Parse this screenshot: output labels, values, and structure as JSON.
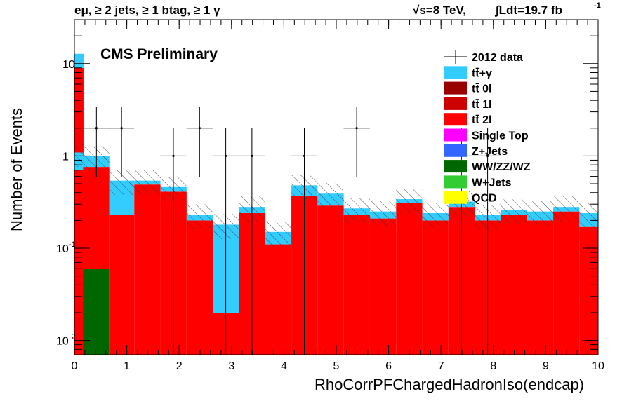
{
  "chart_data": {
    "type": "bar",
    "stacked": true,
    "yscale": "log",
    "title_left": "eμ, ≥ 2 jets, ≥ 1 btag, ≥ 1 γ",
    "title_right_energy": "√s=8 TeV,",
    "title_right_lumi": "∫Ldt=19.7 fb",
    "title_right_lumi_exp": "-1",
    "label": "CMS Preliminary",
    "xlabel": "RhoCorrPFChargedHadronIso(endcap)",
    "ylabel": "Number of Events",
    "xlim": [
      0,
      10
    ],
    "ylim": [
      0.007,
      30
    ],
    "x_ticks": [
      "0",
      "1",
      "2",
      "3",
      "4",
      "5",
      "6",
      "7",
      "8",
      "9",
      "10"
    ],
    "y_ticks": [
      {
        "value": 0.01,
        "base": "10",
        "exp": "-2"
      },
      {
        "value": 0.1,
        "base": "10",
        "exp": "-1"
      },
      {
        "value": 1,
        "base": "1",
        "exp": ""
      },
      {
        "value": 10,
        "base": "10",
        "exp": ""
      }
    ],
    "bin_edges": [
      0,
      0.167,
      0.667,
      1.143,
      1.643,
      2.143,
      2.643,
      3.143,
      3.643,
      4.143,
      4.643,
      5.143,
      5.643,
      6.143,
      6.643,
      7.143,
      7.643,
      8.143,
      8.643,
      9.143,
      9.643,
      10.0
    ],
    "underflow_bin": [
      0.0,
      0.167
    ],
    "underflow_stack": [
      {
        "series": "WW/ZZ/WZ",
        "value": 0.23
      },
      {
        "series": "Single Top",
        "value": 0.55
      },
      {
        "series": "tt̄ 2l",
        "value": 8.2
      },
      {
        "series": "tt̄+γ",
        "value": 3.8
      }
    ],
    "series": [
      {
        "name": "tt̄+γ",
        "color": "#33ccff",
        "values": [
          0.39,
          0.23,
          0.31,
          0.05,
          0.05,
          0.03,
          0.16,
          0.04,
          0.04,
          0.11,
          0.1,
          0.04,
          0.04,
          0.03,
          0.04,
          0.04,
          0.03,
          0.03,
          0.05,
          0.03,
          0.07
        ]
      },
      {
        "name": "tt̄ 0l",
        "color": "#990000",
        "values": []
      },
      {
        "name": "tt̄ 1l",
        "color": "#cc0000",
        "values": []
      },
      {
        "name": "tt̄ 2l",
        "color": "#ff0000",
        "values": [
          0.7,
          0.7,
          0.23,
          0.49,
          0.41,
          0.2,
          0.02,
          0.24,
          0.11,
          0.37,
          0.29,
          0.23,
          0.21,
          0.31,
          0.2,
          0.28,
          0.2,
          0.23,
          0.2,
          0.25,
          0.17
        ]
      },
      {
        "name": "Single Top",
        "color": "#ff00ff",
        "values": []
      },
      {
        "name": "Z+Jets",
        "color": "#3366ff",
        "values": []
      },
      {
        "name": "WW/ZZ/WZ",
        "color": "#006600",
        "values": [
          0,
          0.06,
          0,
          0,
          0,
          0,
          0,
          0,
          0,
          0,
          0,
          0,
          0,
          0,
          0,
          0,
          0,
          0,
          0,
          0,
          0
        ]
      },
      {
        "name": "W+Jets",
        "color": "#33cc33",
        "values": []
      },
      {
        "name": "QCD",
        "color": "#ffff00",
        "values": []
      }
    ],
    "uncertainty_band": {
      "relative": 0.3
    },
    "data": {
      "name": "2012 data",
      "points": [
        {
          "x": 0.42,
          "y": 2,
          "xerr": 0.25
        },
        {
          "x": 0.9,
          "y": 2,
          "xerr": 0.24
        },
        {
          "x": 1.89,
          "y": 1,
          "xerr": 0.25
        },
        {
          "x": 2.39,
          "y": 2,
          "xerr": 0.25
        },
        {
          "x": 2.89,
          "y": 1,
          "xerr": 0.25
        },
        {
          "x": 3.39,
          "y": 1,
          "xerr": 0.25
        },
        {
          "x": 4.39,
          "y": 1,
          "xerr": 0.25
        },
        {
          "x": 5.39,
          "y": 2,
          "xerr": 0.25
        },
        {
          "x": 7.39,
          "y": 1,
          "xerr": 0.25
        },
        {
          "x": 7.89,
          "y": 1,
          "xerr": 0.25
        }
      ]
    },
    "legend": {
      "position": "top-right",
      "entries": [
        {
          "label": "2012 data",
          "style": "data"
        },
        {
          "label": "tt̄+γ",
          "color": "#33ccff"
        },
        {
          "label": "tt̄ 0l",
          "color": "#990000"
        },
        {
          "label": "tt̄ 1l",
          "color": "#cc0000"
        },
        {
          "label": "tt̄ 2l",
          "color": "#ff0000"
        },
        {
          "label": "Single Top",
          "color": "#ff00ff"
        },
        {
          "label": "Z+Jets",
          "color": "#3366ff"
        },
        {
          "label": "WW/ZZ/WZ",
          "color": "#006600"
        },
        {
          "label": "W+Jets",
          "color": "#33cc33"
        },
        {
          "label": "QCD",
          "color": "#ffff00"
        }
      ]
    }
  }
}
